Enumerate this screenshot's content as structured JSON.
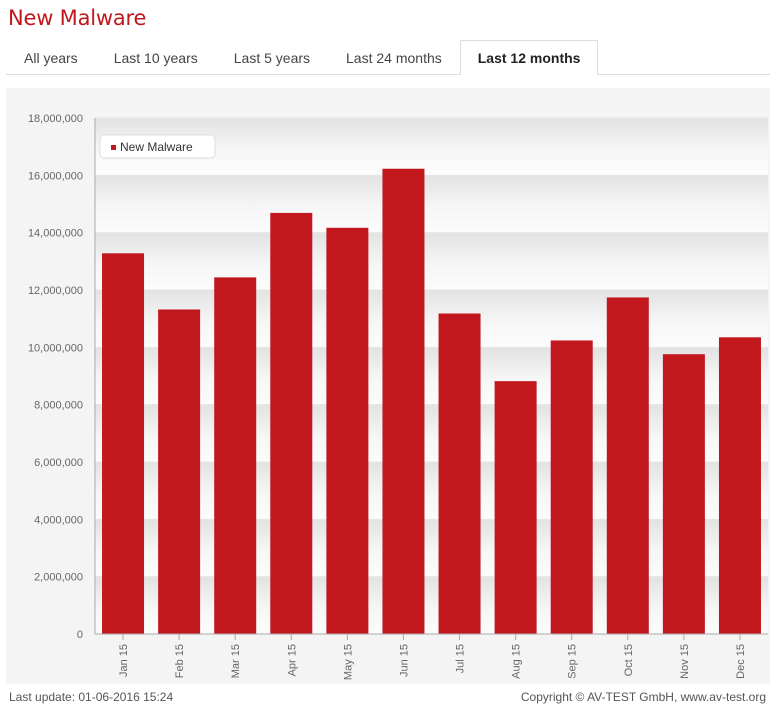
{
  "page_title": "New Malware",
  "tabs": [
    {
      "label": "All years",
      "active": false
    },
    {
      "label": "Last 10 years",
      "active": false
    },
    {
      "label": "Last 5 years",
      "active": false
    },
    {
      "label": "Last 24 months",
      "active": false
    },
    {
      "label": "Last 12 months",
      "active": true
    }
  ],
  "footer": {
    "last_update": "Last update: 01-06-2016 15:24",
    "copyright": "Copyright © AV-TEST GmbH, www.av-test.org"
  },
  "colors": {
    "bar": "#c1171d",
    "title": "#c1171d"
  },
  "chart_data": {
    "type": "bar",
    "categories": [
      "Jan 15",
      "Feb 15",
      "Mar 15",
      "Apr 15",
      "May 15",
      "Jun 15",
      "Jul 15",
      "Aug 15",
      "Sep 15",
      "Oct 15",
      "Nov 15",
      "Dec 15"
    ],
    "series": [
      {
        "name": "New Malware",
        "values": [
          13280000,
          11320000,
          12440000,
          14690000,
          14170000,
          16230000,
          11180000,
          8820000,
          10240000,
          11740000,
          9760000,
          10350000
        ]
      }
    ],
    "yticks": [
      "0",
      "2,000,000",
      "4,000,000",
      "6,000,000",
      "8,000,000",
      "10,000,000",
      "12,000,000",
      "14,000,000",
      "16,000,000",
      "18,000,000"
    ],
    "ylim": [
      0,
      18000000
    ],
    "grid": true,
    "legend": "top-left"
  }
}
